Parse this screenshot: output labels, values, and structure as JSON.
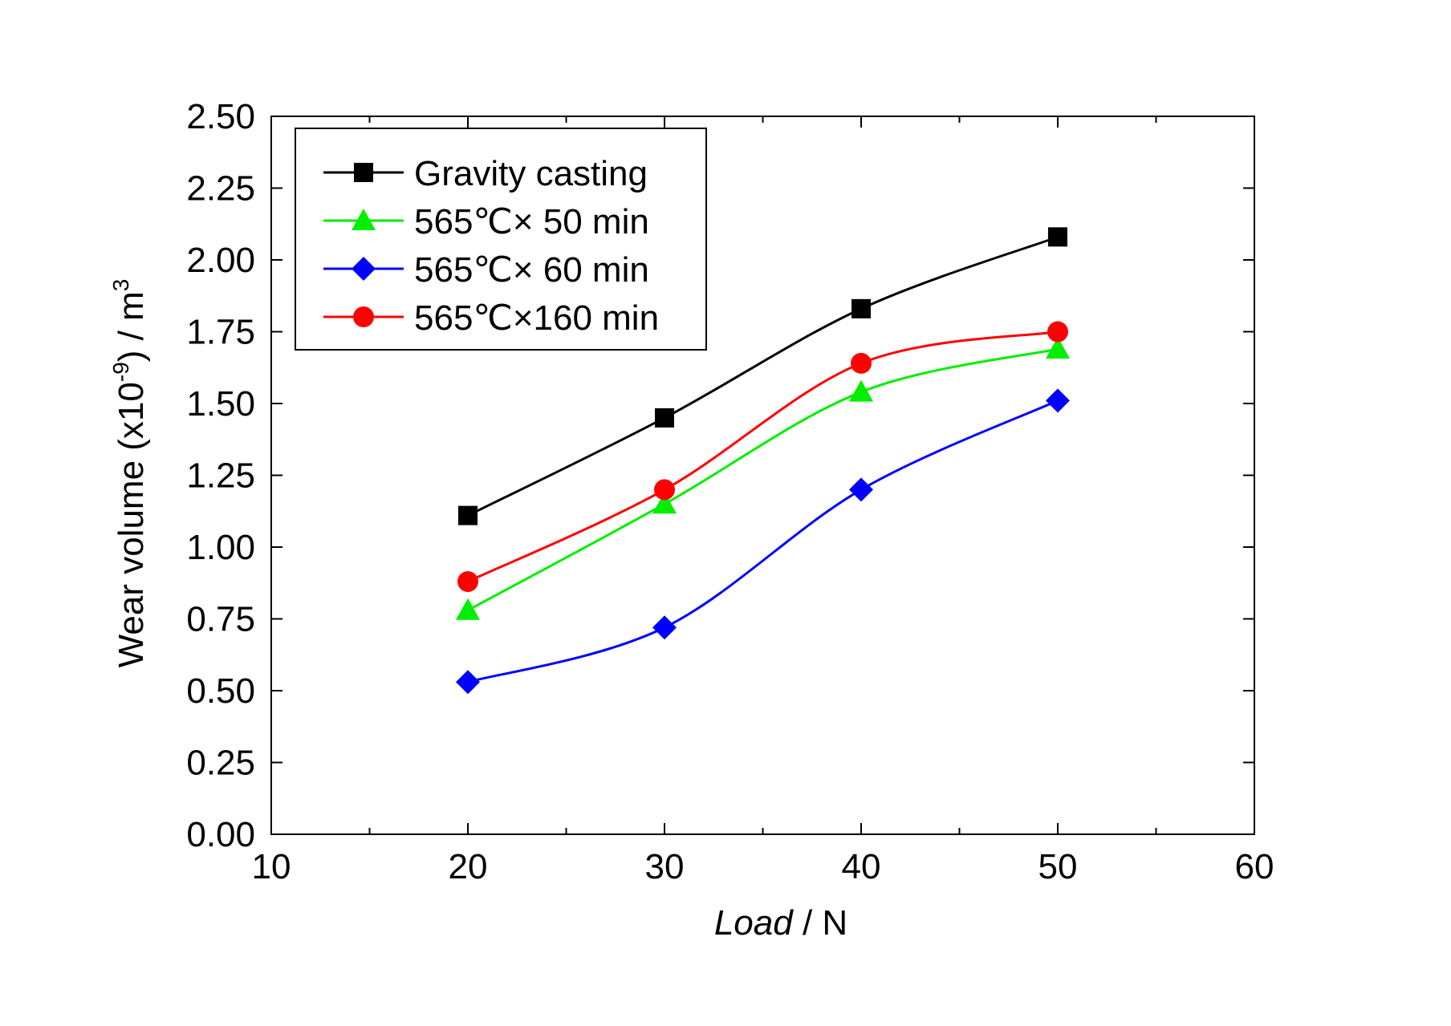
{
  "chart_data": {
    "type": "line",
    "title": "",
    "xlabel_italic": "Load",
    "xlabel_unit": " / N",
    "ylabel_main": "Wear volume (x10",
    "ylabel_exp": "-9",
    "ylabel_tail": ") / m",
    "ylabel_unit_exp": "3",
    "xlim": [
      10,
      60
    ],
    "ylim": [
      0,
      2.5
    ],
    "x_ticks": [
      10,
      20,
      30,
      40,
      50,
      60
    ],
    "x_tick_labels": [
      "10",
      "20",
      "30",
      "40",
      "50",
      "60"
    ],
    "y_ticks": [
      0,
      0.25,
      0.5,
      0.75,
      1.0,
      1.25,
      1.5,
      1.75,
      2.0,
      2.25,
      2.5
    ],
    "y_tick_labels": [
      "0.00",
      "0.25",
      "0.50",
      "0.75",
      "1.00",
      "1.25",
      "1.50",
      "1.75",
      "2.00",
      "2.25",
      "2.50"
    ],
    "grid": false,
    "legend_position": "top-left",
    "x": [
      20,
      30,
      40,
      50
    ],
    "series": [
      {
        "name": "Gravity casting",
        "marker": "square",
        "color": "#000000",
        "values": [
          1.11,
          1.45,
          1.83,
          2.08
        ]
      },
      {
        "name": "565℃× 50 min",
        "marker": "triangle",
        "color": "#00ee00",
        "values": [
          0.78,
          1.15,
          1.54,
          1.69
        ]
      },
      {
        "name": "565℃× 60 min",
        "marker": "diamond",
        "color": "#0000ff",
        "values": [
          0.53,
          0.72,
          1.2,
          1.51
        ]
      },
      {
        "name": "565℃×160 min",
        "marker": "circle",
        "color": "#ff0000",
        "values": [
          0.88,
          1.2,
          1.64,
          1.75
        ]
      }
    ]
  }
}
